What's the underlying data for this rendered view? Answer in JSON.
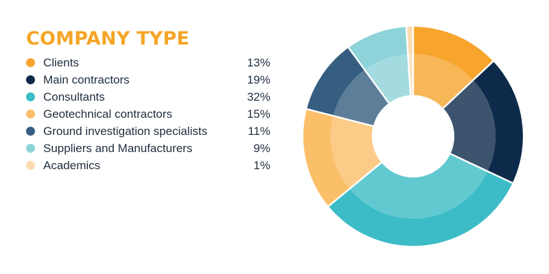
{
  "chart_data": {
    "type": "pie",
    "style": "donut",
    "title": "COMPANY TYPE",
    "categories": [
      "Clients",
      "Main contractors",
      "Consultants",
      "Geotechnical contractors",
      "Ground investigation specialists",
      "Suppliers and Manufacturers",
      "Academics"
    ],
    "values": [
      13,
      19,
      32,
      15,
      11,
      9,
      1
    ],
    "value_labels": [
      "13%",
      "19%",
      "32%",
      "15%",
      "11%",
      "9%",
      "1%"
    ],
    "colors": [
      "#f7a52d",
      "#0d2a4a",
      "#3bbcc6",
      "#fbbf6a",
      "#355e80",
      "#8dd3d9",
      "#fcdbb0"
    ],
    "legend_position": "left"
  }
}
